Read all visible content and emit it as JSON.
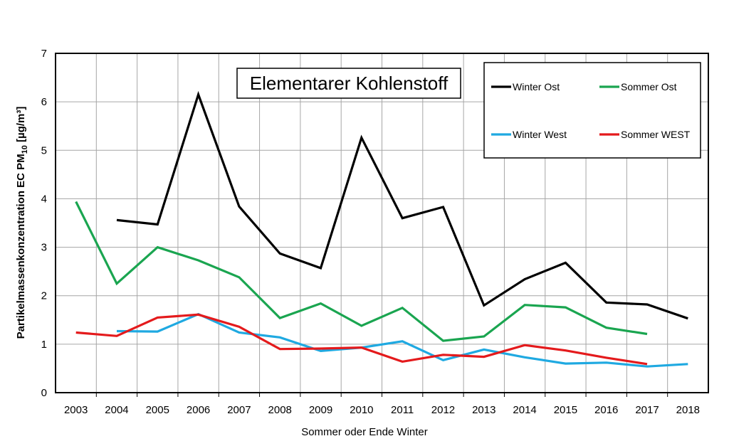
{
  "chart_data": {
    "type": "line",
    "title": "Elementarer Kohlenstoff",
    "xlabel": "Sommer oder Ende Winter",
    "ylabel_parts": [
      "Partikelmassenkonzentration EC PM",
      "10",
      " [µg/m³]"
    ],
    "categories": [
      "2003",
      "2004",
      "2005",
      "2006",
      "2007",
      "2008",
      "2009",
      "2010",
      "2011",
      "2012",
      "2013",
      "2014",
      "2015",
      "2016",
      "2017",
      "2018"
    ],
    "ylim": [
      0,
      7
    ],
    "yticks": [
      "0",
      "1",
      "2",
      "3",
      "4",
      "5",
      "6",
      "7"
    ],
    "grid": true,
    "legend_position": "top-right",
    "series": [
      {
        "name": "Winter Ost",
        "color": "#000000",
        "values": [
          null,
          3.56,
          3.47,
          6.15,
          3.84,
          2.87,
          2.57,
          5.26,
          3.6,
          3.83,
          1.8,
          2.34,
          2.68,
          1.86,
          1.82,
          1.53
        ]
      },
      {
        "name": "Sommer Ost",
        "color": "#1aa550",
        "values": [
          3.94,
          2.25,
          3.0,
          2.73,
          2.38,
          1.54,
          1.84,
          1.38,
          1.75,
          1.07,
          1.16,
          1.81,
          1.76,
          1.34,
          1.21,
          null
        ]
      },
      {
        "name": "Winter West",
        "color": "#1fa9e1",
        "values": [
          null,
          1.27,
          1.26,
          1.62,
          1.24,
          1.14,
          0.86,
          0.93,
          1.06,
          0.67,
          0.89,
          0.73,
          0.6,
          0.62,
          0.54,
          0.59
        ]
      },
      {
        "name": "Sommer WEST",
        "color": "#e41a1c",
        "values": [
          1.24,
          1.17,
          1.55,
          1.61,
          1.36,
          0.9,
          0.91,
          0.93,
          0.64,
          0.78,
          0.74,
          0.98,
          0.87,
          0.72,
          0.59,
          null
        ]
      }
    ]
  }
}
